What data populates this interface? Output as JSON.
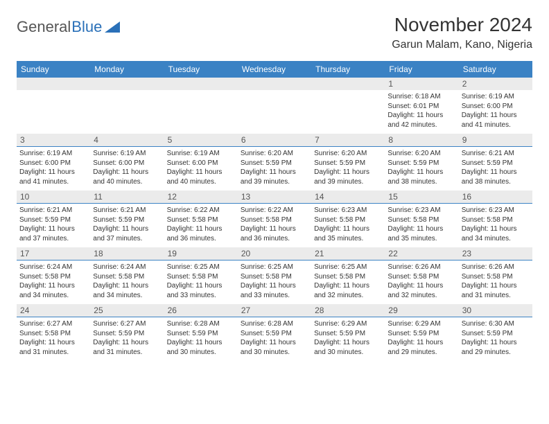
{
  "brand": {
    "part1": "General",
    "part2": "Blue"
  },
  "month_title": "November 2024",
  "location": "Garun Malam, Kano, Nigeria",
  "colors": {
    "header_bg": "#3b82c4",
    "header_text": "#ffffff",
    "daynum_bg": "#ebebeb",
    "daynum_text": "#555555",
    "body_text": "#333333",
    "border": "#3b82c4",
    "logo_gray": "#555555",
    "logo_blue": "#2a70b8"
  },
  "day_headers": [
    "Sunday",
    "Monday",
    "Tuesday",
    "Wednesday",
    "Thursday",
    "Friday",
    "Saturday"
  ],
  "weeks": [
    [
      {
        "blank": true
      },
      {
        "blank": true
      },
      {
        "blank": true
      },
      {
        "blank": true
      },
      {
        "blank": true
      },
      {
        "num": "1",
        "sunrise": "Sunrise: 6:18 AM",
        "sunset": "Sunset: 6:01 PM",
        "daylight": "Daylight: 11 hours and 42 minutes."
      },
      {
        "num": "2",
        "sunrise": "Sunrise: 6:19 AM",
        "sunset": "Sunset: 6:00 PM",
        "daylight": "Daylight: 11 hours and 41 minutes."
      }
    ],
    [
      {
        "num": "3",
        "sunrise": "Sunrise: 6:19 AM",
        "sunset": "Sunset: 6:00 PM",
        "daylight": "Daylight: 11 hours and 41 minutes."
      },
      {
        "num": "4",
        "sunrise": "Sunrise: 6:19 AM",
        "sunset": "Sunset: 6:00 PM",
        "daylight": "Daylight: 11 hours and 40 minutes."
      },
      {
        "num": "5",
        "sunrise": "Sunrise: 6:19 AM",
        "sunset": "Sunset: 6:00 PM",
        "daylight": "Daylight: 11 hours and 40 minutes."
      },
      {
        "num": "6",
        "sunrise": "Sunrise: 6:20 AM",
        "sunset": "Sunset: 5:59 PM",
        "daylight": "Daylight: 11 hours and 39 minutes."
      },
      {
        "num": "7",
        "sunrise": "Sunrise: 6:20 AM",
        "sunset": "Sunset: 5:59 PM",
        "daylight": "Daylight: 11 hours and 39 minutes."
      },
      {
        "num": "8",
        "sunrise": "Sunrise: 6:20 AM",
        "sunset": "Sunset: 5:59 PM",
        "daylight": "Daylight: 11 hours and 38 minutes."
      },
      {
        "num": "9",
        "sunrise": "Sunrise: 6:21 AM",
        "sunset": "Sunset: 5:59 PM",
        "daylight": "Daylight: 11 hours and 38 minutes."
      }
    ],
    [
      {
        "num": "10",
        "sunrise": "Sunrise: 6:21 AM",
        "sunset": "Sunset: 5:59 PM",
        "daylight": "Daylight: 11 hours and 37 minutes."
      },
      {
        "num": "11",
        "sunrise": "Sunrise: 6:21 AM",
        "sunset": "Sunset: 5:59 PM",
        "daylight": "Daylight: 11 hours and 37 minutes."
      },
      {
        "num": "12",
        "sunrise": "Sunrise: 6:22 AM",
        "sunset": "Sunset: 5:58 PM",
        "daylight": "Daylight: 11 hours and 36 minutes."
      },
      {
        "num": "13",
        "sunrise": "Sunrise: 6:22 AM",
        "sunset": "Sunset: 5:58 PM",
        "daylight": "Daylight: 11 hours and 36 minutes."
      },
      {
        "num": "14",
        "sunrise": "Sunrise: 6:23 AM",
        "sunset": "Sunset: 5:58 PM",
        "daylight": "Daylight: 11 hours and 35 minutes."
      },
      {
        "num": "15",
        "sunrise": "Sunrise: 6:23 AM",
        "sunset": "Sunset: 5:58 PM",
        "daylight": "Daylight: 11 hours and 35 minutes."
      },
      {
        "num": "16",
        "sunrise": "Sunrise: 6:23 AM",
        "sunset": "Sunset: 5:58 PM",
        "daylight": "Daylight: 11 hours and 34 minutes."
      }
    ],
    [
      {
        "num": "17",
        "sunrise": "Sunrise: 6:24 AM",
        "sunset": "Sunset: 5:58 PM",
        "daylight": "Daylight: 11 hours and 34 minutes."
      },
      {
        "num": "18",
        "sunrise": "Sunrise: 6:24 AM",
        "sunset": "Sunset: 5:58 PM",
        "daylight": "Daylight: 11 hours and 34 minutes."
      },
      {
        "num": "19",
        "sunrise": "Sunrise: 6:25 AM",
        "sunset": "Sunset: 5:58 PM",
        "daylight": "Daylight: 11 hours and 33 minutes."
      },
      {
        "num": "20",
        "sunrise": "Sunrise: 6:25 AM",
        "sunset": "Sunset: 5:58 PM",
        "daylight": "Daylight: 11 hours and 33 minutes."
      },
      {
        "num": "21",
        "sunrise": "Sunrise: 6:25 AM",
        "sunset": "Sunset: 5:58 PM",
        "daylight": "Daylight: 11 hours and 32 minutes."
      },
      {
        "num": "22",
        "sunrise": "Sunrise: 6:26 AM",
        "sunset": "Sunset: 5:58 PM",
        "daylight": "Daylight: 11 hours and 32 minutes."
      },
      {
        "num": "23",
        "sunrise": "Sunrise: 6:26 AM",
        "sunset": "Sunset: 5:58 PM",
        "daylight": "Daylight: 11 hours and 31 minutes."
      }
    ],
    [
      {
        "num": "24",
        "sunrise": "Sunrise: 6:27 AM",
        "sunset": "Sunset: 5:58 PM",
        "daylight": "Daylight: 11 hours and 31 minutes."
      },
      {
        "num": "25",
        "sunrise": "Sunrise: 6:27 AM",
        "sunset": "Sunset: 5:59 PM",
        "daylight": "Daylight: 11 hours and 31 minutes."
      },
      {
        "num": "26",
        "sunrise": "Sunrise: 6:28 AM",
        "sunset": "Sunset: 5:59 PM",
        "daylight": "Daylight: 11 hours and 30 minutes."
      },
      {
        "num": "27",
        "sunrise": "Sunrise: 6:28 AM",
        "sunset": "Sunset: 5:59 PM",
        "daylight": "Daylight: 11 hours and 30 minutes."
      },
      {
        "num": "28",
        "sunrise": "Sunrise: 6:29 AM",
        "sunset": "Sunset: 5:59 PM",
        "daylight": "Daylight: 11 hours and 30 minutes."
      },
      {
        "num": "29",
        "sunrise": "Sunrise: 6:29 AM",
        "sunset": "Sunset: 5:59 PM",
        "daylight": "Daylight: 11 hours and 29 minutes."
      },
      {
        "num": "30",
        "sunrise": "Sunrise: 6:30 AM",
        "sunset": "Sunset: 5:59 PM",
        "daylight": "Daylight: 11 hours and 29 minutes."
      }
    ]
  ]
}
